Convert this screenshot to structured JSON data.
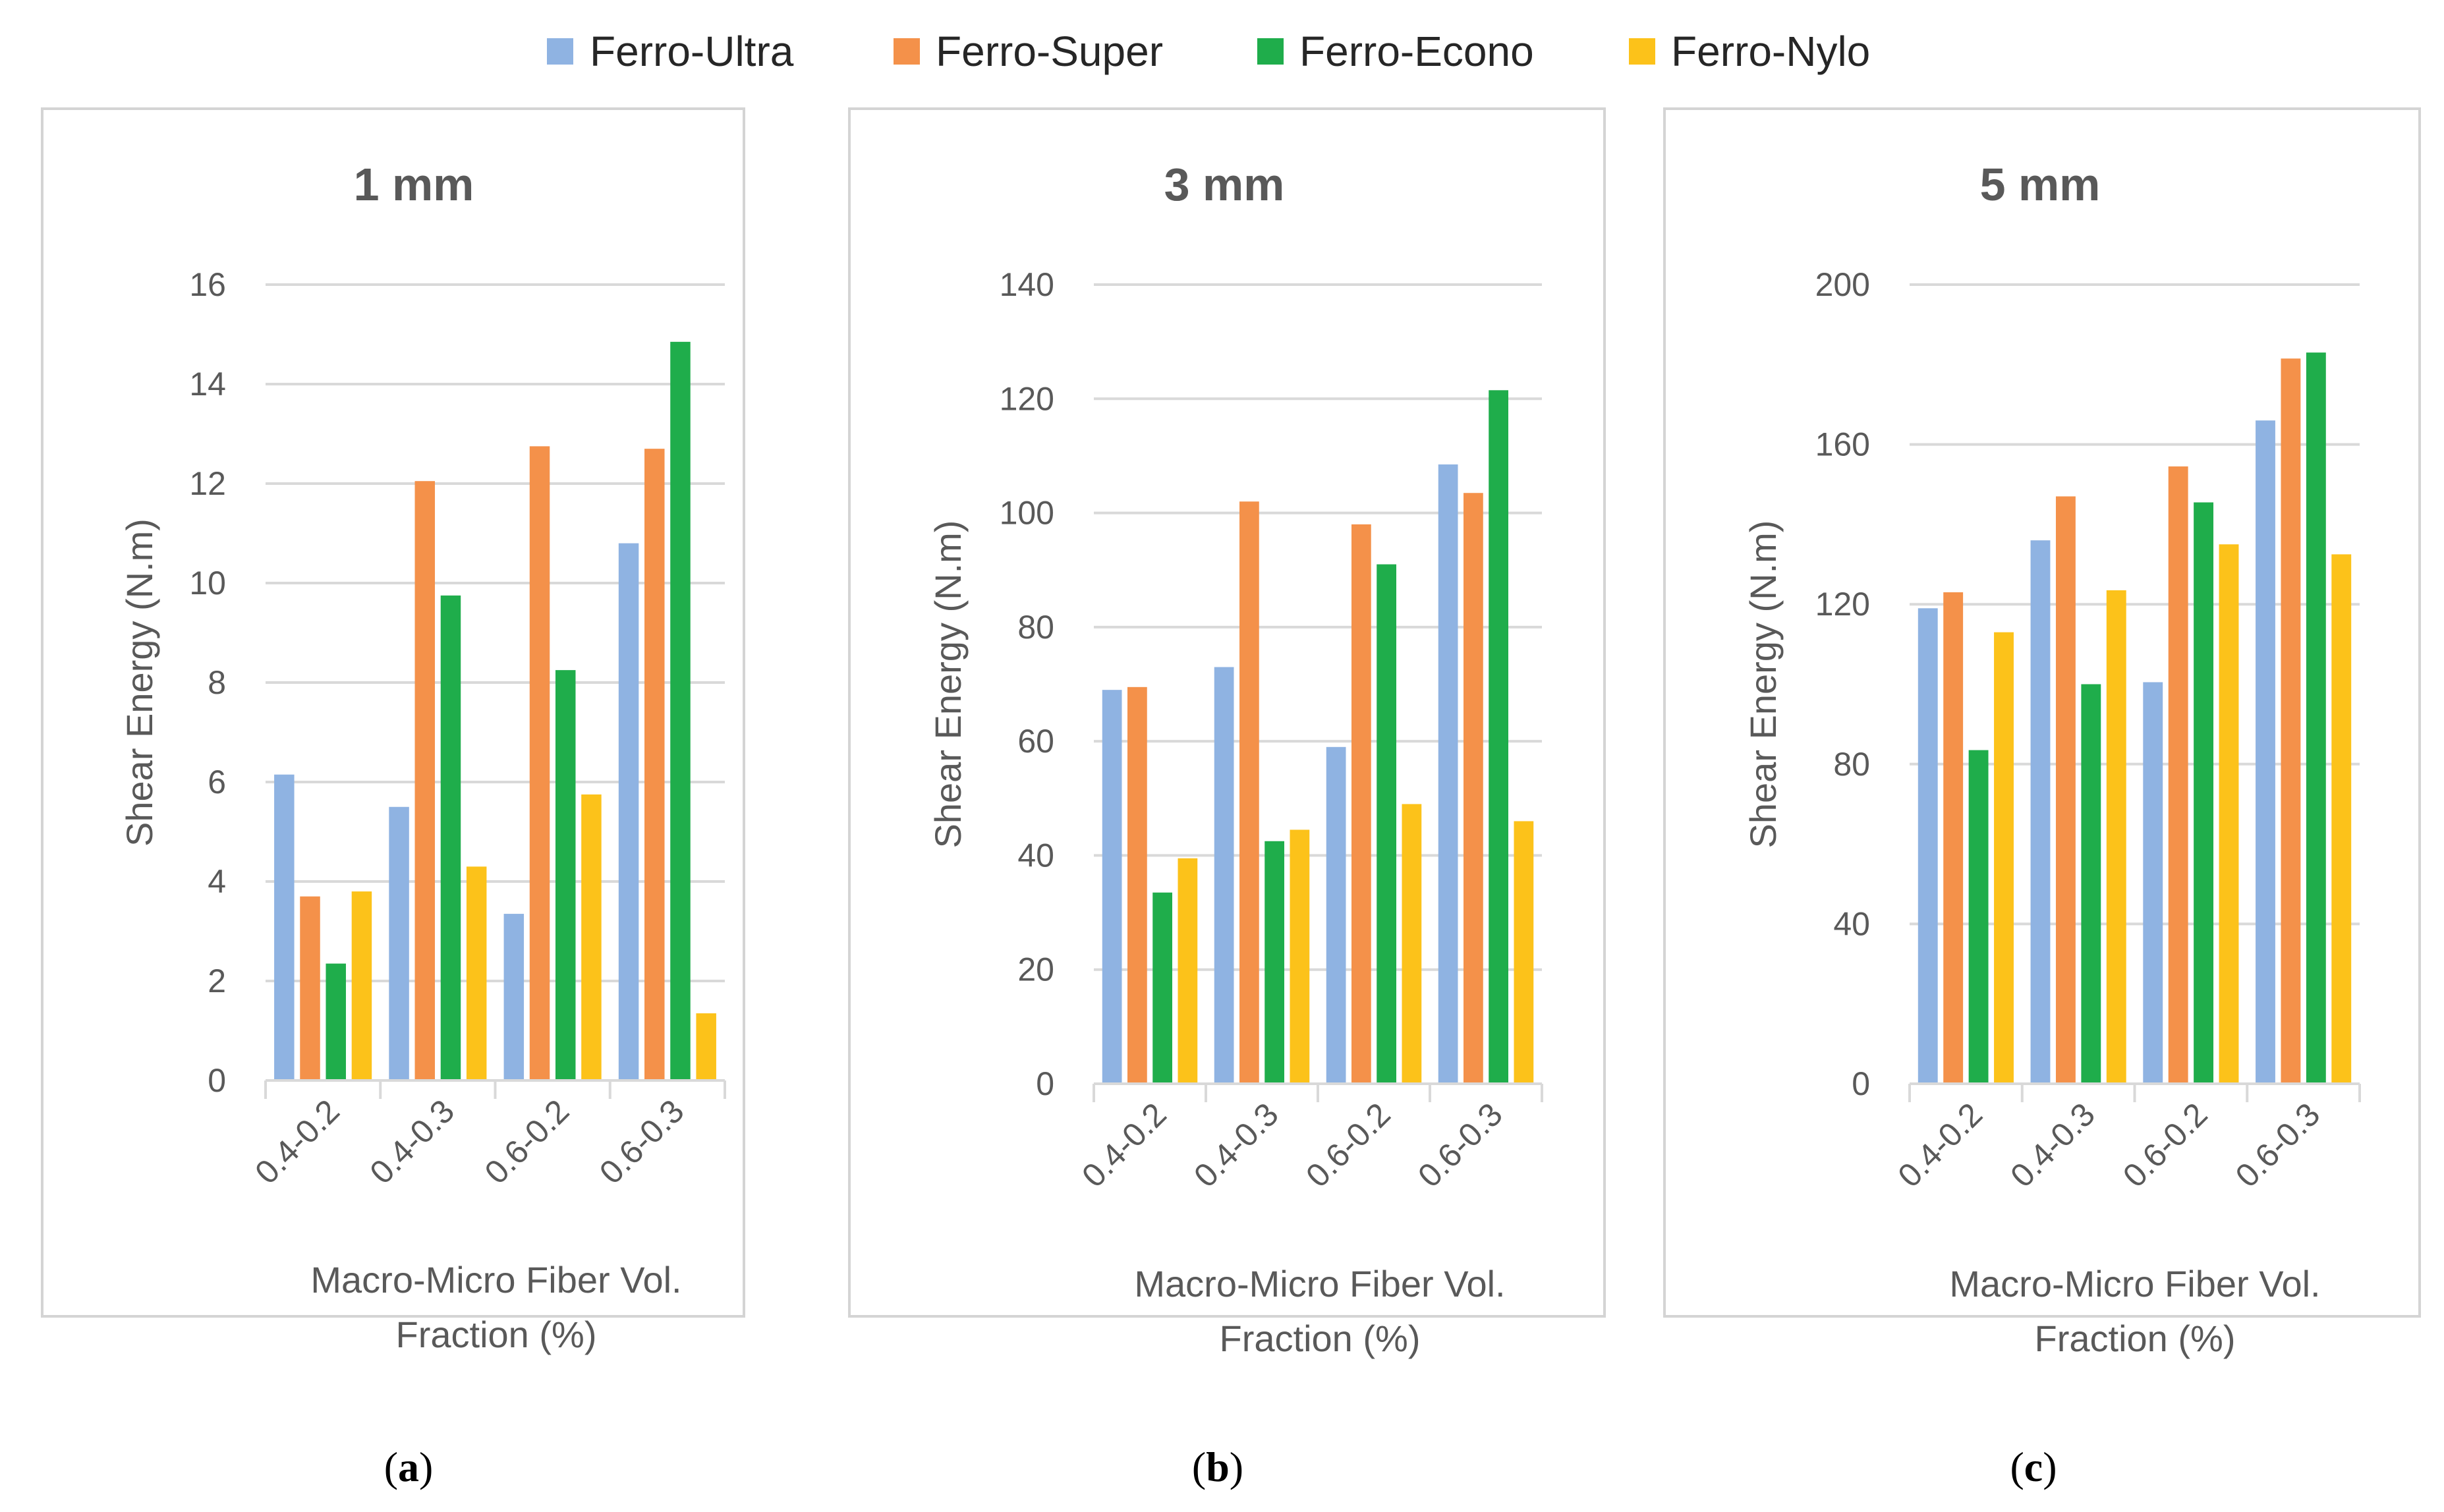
{
  "legend": {
    "items": [
      {
        "name": "Ferro-Ultra",
        "color": "#8fb3e2"
      },
      {
        "name": "Ferro-Super",
        "color": "#f4914a"
      },
      {
        "name": "Ferro-Econo",
        "color": "#1fad4b"
      },
      {
        "name": "Ferro-Nylo",
        "color": "#fcc21a"
      }
    ]
  },
  "chart_data": [
    {
      "type": "bar",
      "caption_letter": "a",
      "title": "1 mm",
      "xlabel_lines": [
        "Macro-Micro Fiber Vol.",
        "Fraction (%)"
      ],
      "ylabel": "Shear Energy (N.m)",
      "categories": [
        "0.4-0.2",
        "0.4-0.3",
        "0.6-0.2",
        "0.6-0.3"
      ],
      "ylim": [
        0,
        16
      ],
      "yticks": [
        0,
        2,
        4,
        6,
        8,
        10,
        12,
        14,
        16
      ],
      "series": [
        {
          "name": "Ferro-Ultra",
          "values": [
            6.15,
            5.5,
            3.35,
            10.8
          ]
        },
        {
          "name": "Ferro-Super",
          "values": [
            3.7,
            12.05,
            12.75,
            12.7
          ]
        },
        {
          "name": "Ferro-Econo",
          "values": [
            2.35,
            9.75,
            8.25,
            14.85
          ]
        },
        {
          "name": "Ferro-Nylo",
          "values": [
            3.8,
            4.3,
            5.75,
            1.35
          ]
        }
      ]
    },
    {
      "type": "bar",
      "caption_letter": "b",
      "title": "3 mm",
      "xlabel_lines": [
        "Macro-Micro Fiber Vol.",
        "Fraction (%)"
      ],
      "ylabel": "Shear Energy (N.m)",
      "categories": [
        "0.4-0.2",
        "0.4-0.3",
        "0.6-0.2",
        "0.6-0.3"
      ],
      "ylim": [
        0,
        140
      ],
      "yticks": [
        0,
        20,
        40,
        60,
        80,
        100,
        120,
        140
      ],
      "series": [
        {
          "name": "Ferro-Ultra",
          "values": [
            69,
            73,
            59,
            108.5
          ]
        },
        {
          "name": "Ferro-Super",
          "values": [
            69.5,
            102,
            98,
            103.5
          ]
        },
        {
          "name": "Ferro-Econo",
          "values": [
            33.5,
            42.5,
            91,
            121.5
          ]
        },
        {
          "name": "Ferro-Nylo",
          "values": [
            39.5,
            44.5,
            49,
            46
          ]
        }
      ]
    },
    {
      "type": "bar",
      "caption_letter": "c",
      "title": "5 mm",
      "xlabel_lines": [
        "Macro-Micro Fiber Vol.",
        "Fraction (%)"
      ],
      "ylabel": "Shear Energy (N.m)",
      "categories": [
        "0.4-0.2",
        "0.4-0.3",
        "0.6-0.2",
        "0.6-0.3"
      ],
      "ylim": [
        0,
        200
      ],
      "yticks": [
        0,
        40,
        80,
        120,
        160,
        200
      ],
      "series": [
        {
          "name": "Ferro-Ultra",
          "values": [
            119,
            136,
            100.5,
            166
          ]
        },
        {
          "name": "Ferro-Super",
          "values": [
            123,
            147,
            154.5,
            181.5
          ]
        },
        {
          "name": "Ferro-Econo",
          "values": [
            83.5,
            100,
            145.5,
            183
          ]
        },
        {
          "name": "Ferro-Nylo",
          "values": [
            113,
            123.5,
            135,
            132.5
          ]
        }
      ]
    }
  ]
}
